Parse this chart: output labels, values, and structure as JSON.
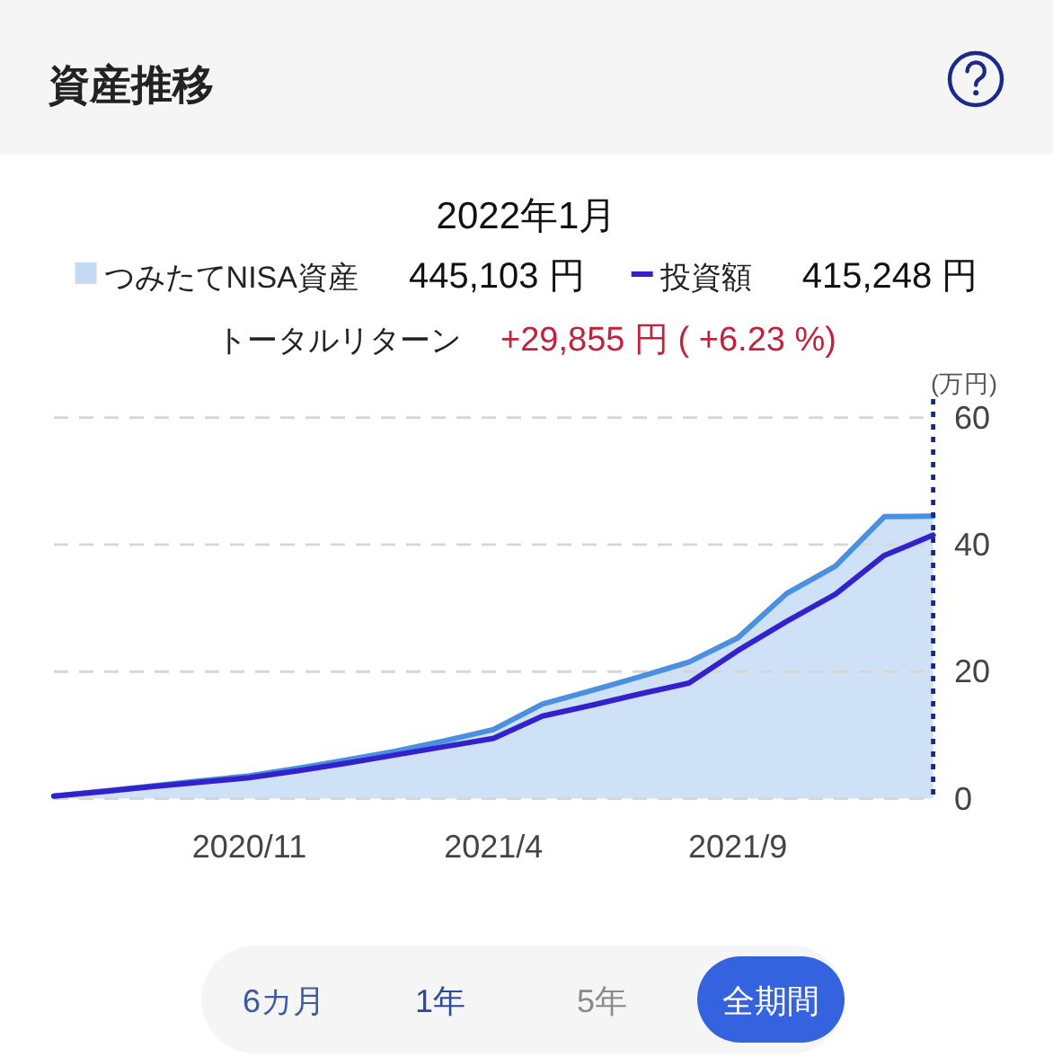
{
  "chart_data": {
    "type": "line",
    "title": "資産推移",
    "subtitle": "2022年1月",
    "ylabel": "(万円)",
    "x": [
      "2020-07",
      "2020-08",
      "2020-09",
      "2020-10",
      "2020-11",
      "2020-12",
      "2021-01",
      "2021-02",
      "2021-03",
      "2021-04",
      "2021-05",
      "2021-06",
      "2021-07",
      "2021-08",
      "2021-09",
      "2021-10",
      "2021-11",
      "2021-12",
      "2022-01"
    ],
    "series": [
      {
        "name": "つみたてNISA資産",
        "type": "area",
        "color": "#4a8fe0",
        "values": [
          0.4,
          1.2,
          2.0,
          2.8,
          3.6,
          4.8,
          6.1,
          7.5,
          9.1,
          10.9,
          14.9,
          17.0,
          19.2,
          21.5,
          25.3,
          32.3,
          36.6,
          44.4,
          44.5
        ]
      },
      {
        "name": "投資額",
        "type": "line",
        "color": "#3322cc",
        "values": [
          0.4,
          1.1,
          1.9,
          2.6,
          3.3,
          4.4,
          5.6,
          6.9,
          8.2,
          9.5,
          13.0,
          14.7,
          16.5,
          18.2,
          23.3,
          27.9,
          32.2,
          38.3,
          41.5
        ]
      }
    ],
    "xlim": [
      "2020-07",
      "2022-01"
    ],
    "xticks": [
      {
        "value": "2020-11",
        "label": "2020/11"
      },
      {
        "value": "2021-04",
        "label": "2021/4"
      },
      {
        "value": "2021-09",
        "label": "2021/9"
      }
    ],
    "ylim": [
      0,
      60
    ],
    "yticks": [
      0,
      20,
      40,
      60
    ],
    "ref_lines": [
      {
        "axis": "x",
        "value": "2022-01",
        "color": "#1a2a7a",
        "line_style": "dotted"
      }
    ],
    "grid": "y",
    "legend": "top",
    "annotations": [
      "445,103 円",
      "415,248 円",
      "トータルリターン",
      "+29,855 円 ( +6.23 %)",
      "6カ月",
      "1年",
      "5年",
      "全期間"
    ]
  }
}
